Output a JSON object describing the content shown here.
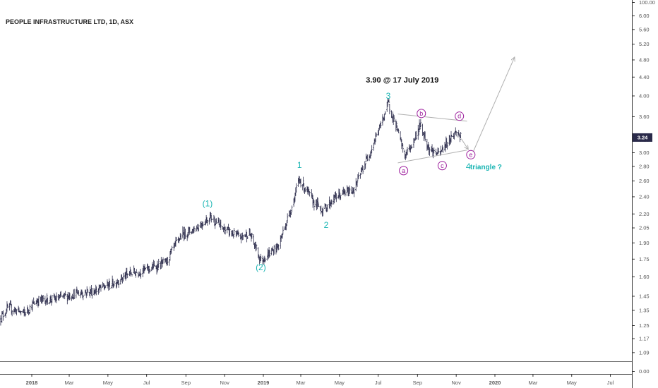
{
  "chart_data": {
    "type": "bar",
    "style": "ohlc",
    "title": "PEOPLE INFRASTRUCTURE LTD, 1D, ASX",
    "y_axis": {
      "position": "right",
      "scale": "log",
      "ticks": [
        "100.00",
        "6.00",
        "5.60",
        "5.20",
        "4.80",
        "4.40",
        "4.00",
        "3.60",
        "3.20",
        "3.00",
        "2.80",
        "2.60",
        "2.40",
        "2.20",
        "2.05",
        "1.90",
        "1.75",
        "1.60",
        "1.45",
        "1.35",
        "1.25",
        "1.17",
        "1.09",
        "0.00"
      ]
    },
    "x_axis": {
      "ticks": [
        "2018",
        "Mar",
        "May",
        "Jul",
        "Sep",
        "Nov",
        "2019",
        "Mar",
        "May",
        "Jul",
        "Sep",
        "Nov",
        "2020",
        "Mar",
        "May",
        "Jul"
      ],
      "range": [
        "2017-11",
        "2020-08"
      ]
    },
    "last_price": "3.24",
    "colors": {
      "bars": "#2a2a4a",
      "teal": "#1ab5b3",
      "purple": "#9c1b9c",
      "badge": "#2a2a4a",
      "projection": "#b0b0b0"
    },
    "price_anchors": [
      {
        "date": "2017-11-13",
        "price": 1.3
      },
      {
        "date": "2017-11-25",
        "price": 1.37
      },
      {
        "date": "2017-12-20",
        "price": 1.33
      },
      {
        "date": "2018-01-10",
        "price": 1.42
      },
      {
        "date": "2018-02-10",
        "price": 1.43
      },
      {
        "date": "2018-03-10",
        "price": 1.47
      },
      {
        "date": "2018-04-10",
        "price": 1.49
      },
      {
        "date": "2018-05-10",
        "price": 1.55
      },
      {
        "date": "2018-06-05",
        "price": 1.63
      },
      {
        "date": "2018-07-01",
        "price": 1.66
      },
      {
        "date": "2018-08-01",
        "price": 1.72
      },
      {
        "date": "2018-08-25",
        "price": 1.98
      },
      {
        "date": "2018-09-15",
        "price": 2.04
      },
      {
        "date": "2018-10-10",
        "price": 2.17
      },
      {
        "date": "2018-10-28",
        "price": 2.05
      },
      {
        "date": "2018-11-25",
        "price": 1.95
      },
      {
        "date": "2018-12-10",
        "price": 2.0
      },
      {
        "date": "2018-12-28",
        "price": 1.74
      },
      {
        "date": "2019-01-25",
        "price": 1.87
      },
      {
        "date": "2019-02-15",
        "price": 2.28
      },
      {
        "date": "2019-02-27",
        "price": 2.62
      },
      {
        "date": "2019-03-20",
        "price": 2.35
      },
      {
        "date": "2019-04-05",
        "price": 2.24
      },
      {
        "date": "2019-04-25",
        "price": 2.4
      },
      {
        "date": "2019-05-25",
        "price": 2.5
      },
      {
        "date": "2019-06-20",
        "price": 3.05
      },
      {
        "date": "2019-07-05",
        "price": 3.45
      },
      {
        "date": "2019-07-17",
        "price": 3.85
      },
      {
        "date": "2019-07-30",
        "price": 3.4
      },
      {
        "date": "2019-08-12",
        "price": 2.95
      },
      {
        "date": "2019-08-25",
        "price": 3.15
      },
      {
        "date": "2019-09-05",
        "price": 3.45
      },
      {
        "date": "2019-09-20",
        "price": 3.05
      },
      {
        "date": "2019-10-05",
        "price": 2.97
      },
      {
        "date": "2019-10-20",
        "price": 3.2
      },
      {
        "date": "2019-11-02",
        "price": 3.35
      },
      {
        "date": "2019-11-08",
        "price": 3.24
      }
    ],
    "waves": [
      {
        "label": "(1)",
        "date": "2018-10-05",
        "price": 2.32,
        "color": "teal"
      },
      {
        "label": "(2)",
        "date": "2018-12-28",
        "price": 1.68,
        "color": "teal"
      },
      {
        "label": "1",
        "date": "2019-02-27",
        "price": 2.82,
        "color": "teal"
      },
      {
        "label": "2",
        "date": "2019-04-10",
        "price": 2.08,
        "color": "teal"
      },
      {
        "label": "3",
        "date": "2019-07-17",
        "price": 4.0,
        "color": "teal"
      },
      {
        "label": "4",
        "date": "2019-11-20",
        "price": 2.8,
        "color": "teal"
      }
    ],
    "triangle_points": [
      {
        "label": "a",
        "date": "2019-08-10",
        "price": 2.74
      },
      {
        "label": "b",
        "date": "2019-09-07",
        "price": 3.66
      },
      {
        "label": "c",
        "date": "2019-10-10",
        "price": 2.81
      },
      {
        "label": "d",
        "date": "2019-11-06",
        "price": 3.61
      },
      {
        "label": "e",
        "date": "2019-11-24",
        "price": 2.97
      }
    ],
    "triangle_lines": [
      {
        "from": {
          "date": "2019-08-01",
          "price": 3.65
        },
        "to": {
          "date": "2019-11-18",
          "price": 3.52
        }
      },
      {
        "from": {
          "date": "2019-08-01",
          "price": 2.85
        },
        "to": {
          "date": "2019-11-18",
          "price": 3.04
        }
      }
    ],
    "projection": [
      {
        "from": {
          "date": "2019-11-09",
          "price": 3.22
        },
        "to": {
          "date": "2019-11-20",
          "price": 3.05
        }
      },
      {
        "from": {
          "date": "2019-11-28",
          "price": 3.02
        },
        "to": {
          "date": "2020-02-01",
          "price": 4.87
        }
      }
    ],
    "annotations": [
      {
        "text": "3.90 @ 17 July 2019",
        "date": "2019-08-08",
        "price": 4.34
      },
      {
        "text": "triangle ?",
        "date": "2019-12-18",
        "price": 2.8
      }
    ]
  }
}
